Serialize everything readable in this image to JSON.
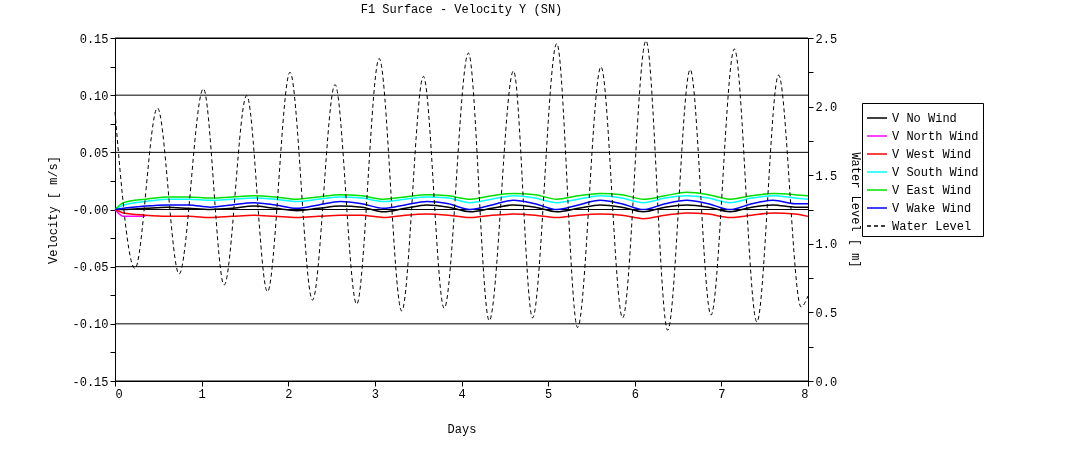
{
  "chart_data": {
    "type": "line",
    "title": "F1 Surface - Velocity Y (SN)",
    "xlabel": "Days",
    "ylabel": "Velocity [ m/s]",
    "y2label": "Water Level [ m]",
    "x": [
      0,
      0.1,
      0.35,
      0.6,
      0.85,
      1.1,
      1.35,
      1.6,
      1.85,
      2.1,
      2.35,
      2.6,
      2.85,
      3.1,
      3.35,
      3.6,
      3.85,
      4.1,
      4.35,
      4.6,
      4.85,
      5.1,
      5.35,
      5.6,
      5.85,
      6.1,
      6.35,
      6.6,
      6.85,
      7.1,
      7.35,
      7.6,
      7.85,
      8.0
    ],
    "series": [
      {
        "name": "V No Wind",
        "color": "#000000",
        "values": [
          0.0,
          0.0,
          0.001,
          0.002,
          0.001,
          0.0,
          0.001,
          0.003,
          0.001,
          -0.001,
          0.001,
          0.003,
          0.002,
          -0.002,
          0.001,
          0.004,
          0.002,
          -0.002,
          0.001,
          0.004,
          0.002,
          -0.002,
          0.001,
          0.004,
          0.002,
          -0.002,
          0.002,
          0.004,
          0.002,
          -0.002,
          0.002,
          0.004,
          0.002,
          0.002
        ]
      },
      {
        "name": "V North Wind",
        "color": "#ff00ff",
        "values": [
          0.0,
          -0.006,
          -0.006,
          null,
          null,
          null,
          null,
          null,
          null,
          null,
          null,
          null,
          null,
          null,
          null,
          null,
          null,
          null,
          null,
          null,
          null,
          null,
          null,
          null,
          null,
          null,
          null,
          null,
          null,
          null,
          null,
          null,
          null,
          null
        ]
      },
      {
        "name": "V West Wind",
        "color": "#ff0000",
        "values": [
          0.0,
          -0.003,
          -0.005,
          -0.006,
          -0.006,
          -0.007,
          -0.006,
          -0.005,
          -0.006,
          -0.007,
          -0.006,
          -0.005,
          -0.005,
          -0.007,
          -0.005,
          -0.004,
          -0.005,
          -0.007,
          -0.005,
          -0.004,
          -0.005,
          -0.007,
          -0.005,
          -0.004,
          -0.005,
          -0.008,
          -0.005,
          -0.003,
          -0.004,
          -0.007,
          -0.005,
          -0.003,
          -0.004,
          -0.006
        ]
      },
      {
        "name": "V South Wind",
        "color": "#00ffff",
        "values": [
          0.0,
          0.004,
          0.007,
          0.009,
          0.009,
          0.008,
          0.009,
          0.01,
          0.009,
          0.007,
          0.009,
          0.011,
          0.01,
          0.007,
          0.009,
          0.011,
          0.01,
          0.006,
          0.009,
          0.012,
          0.01,
          0.006,
          0.009,
          0.012,
          0.01,
          0.006,
          0.01,
          0.012,
          0.01,
          0.006,
          0.01,
          0.012,
          0.01,
          0.009
        ]
      },
      {
        "name": "V East Wind",
        "color": "#00e000",
        "values": [
          0.0,
          0.006,
          0.009,
          0.011,
          0.011,
          0.01,
          0.011,
          0.012,
          0.011,
          0.009,
          0.011,
          0.013,
          0.012,
          0.009,
          0.011,
          0.013,
          0.012,
          0.009,
          0.012,
          0.014,
          0.013,
          0.009,
          0.012,
          0.014,
          0.013,
          0.009,
          0.012,
          0.015,
          0.013,
          0.009,
          0.012,
          0.014,
          0.013,
          0.012
        ]
      },
      {
        "name": "V Wake Wind",
        "color": "#0000ff",
        "values": [
          0.0,
          0.001,
          0.003,
          0.004,
          0.004,
          0.002,
          0.004,
          0.006,
          0.004,
          0.001,
          0.004,
          0.007,
          0.005,
          0.001,
          0.004,
          0.007,
          0.005,
          0.0,
          0.004,
          0.008,
          0.005,
          0.0,
          0.004,
          0.008,
          0.005,
          0.0,
          0.005,
          0.008,
          0.005,
          0.0,
          0.005,
          0.008,
          0.005,
          0.005
        ]
      },
      {
        "name": "Water Level",
        "color": "#000000",
        "axis": "y2",
        "line_style": "dashed",
        "x": [
          0,
          0.23,
          0.49,
          0.74,
          1.02,
          1.26,
          1.52,
          1.76,
          2.02,
          2.28,
          2.54,
          2.79,
          3.05,
          3.31,
          3.56,
          3.8,
          4.08,
          4.32,
          4.6,
          4.82,
          5.1,
          5.34,
          5.61,
          5.86,
          6.13,
          6.38,
          6.64,
          6.88,
          7.15,
          7.41,
          7.66,
          7.92,
          8.0
        ],
        "values": [
          1.96,
          0.82,
          1.99,
          0.78,
          2.13,
          0.7,
          2.08,
          0.65,
          2.25,
          0.59,
          2.16,
          0.56,
          2.35,
          0.51,
          2.22,
          0.53,
          2.39,
          0.44,
          2.26,
          0.46,
          2.46,
          0.39,
          2.29,
          0.46,
          2.48,
          0.37,
          2.27,
          0.48,
          2.42,
          0.43,
          2.23,
          0.54,
          0.62
        ]
      }
    ],
    "xlim": [
      0,
      8
    ],
    "xticks": [
      0,
      1,
      2,
      3,
      4,
      5,
      6,
      7,
      8
    ],
    "ylim": [
      -0.15,
      0.15
    ],
    "yticks": [
      {
        "value": -0.15,
        "label": "-0.15"
      },
      {
        "value": -0.125,
        "label": null
      },
      {
        "value": -0.1,
        "label": "-0.10"
      },
      {
        "value": -0.075,
        "label": null
      },
      {
        "value": -0.05,
        "label": "-0.05"
      },
      {
        "value": -0.025,
        "label": null
      },
      {
        "value": 0,
        "label": "-0.00"
      },
      {
        "value": 0.025,
        "label": null
      },
      {
        "value": 0.05,
        "label": "0.05"
      },
      {
        "value": 0.075,
        "label": null
      },
      {
        "value": 0.1,
        "label": "0.10"
      },
      {
        "value": 0.125,
        "label": null
      },
      {
        "value": 0.15,
        "label": "0.15"
      }
    ],
    "y2lim": [
      0,
      2.5
    ],
    "y2ticks": [
      {
        "value": 0,
        "label": "0.0"
      },
      {
        "value": 0.25,
        "label": null
      },
      {
        "value": 0.5,
        "label": "0.5"
      },
      {
        "value": 0.75,
        "label": null
      },
      {
        "value": 1,
        "label": "1.0"
      },
      {
        "value": 1.25,
        "label": null
      },
      {
        "value": 1.5,
        "label": "1.5"
      },
      {
        "value": 1.75,
        "label": null
      },
      {
        "value": 2,
        "label": "2.0"
      },
      {
        "value": 2.25,
        "label": null
      },
      {
        "value": 2.5,
        "label": "2.5"
      }
    ],
    "grid": "y",
    "legend": "right",
    "marker": "none",
    "line_style": "solid"
  }
}
